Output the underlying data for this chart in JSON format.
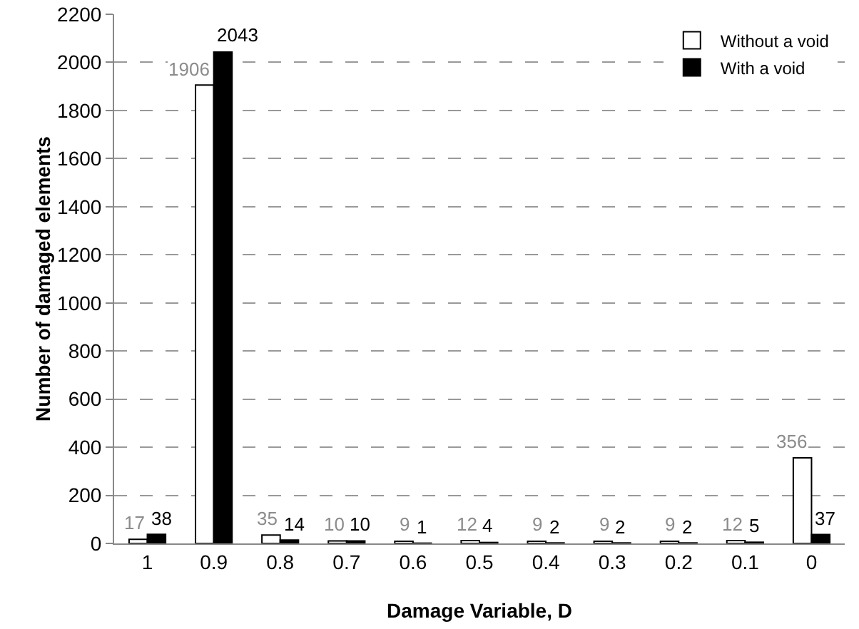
{
  "chart_data": {
    "type": "bar",
    "xlabel": "Damage Variable, D",
    "ylabel": "Number of damaged elements",
    "categories": [
      "1",
      "0.9",
      "0.8",
      "0.7",
      "0.6",
      "0.5",
      "0.4",
      "0.3",
      "0.2",
      "0.1",
      "0"
    ],
    "series": [
      {
        "name": "Without a void",
        "color": "#ffffff",
        "values": [
          17,
          1906,
          35,
          10,
          9,
          12,
          9,
          9,
          9,
          12,
          356
        ]
      },
      {
        "name": "With a void",
        "color": "#000000",
        "values": [
          38,
          2043,
          14,
          10,
          1,
          4,
          2,
          2,
          2,
          5,
          37
        ]
      }
    ],
    "ylim": [
      0,
      2200
    ],
    "yticks": [
      0,
      200,
      400,
      600,
      800,
      1000,
      1200,
      1400,
      1600,
      1800,
      2000,
      2200
    ],
    "grid": "y",
    "legend": "top right",
    "data_labels": true
  }
}
